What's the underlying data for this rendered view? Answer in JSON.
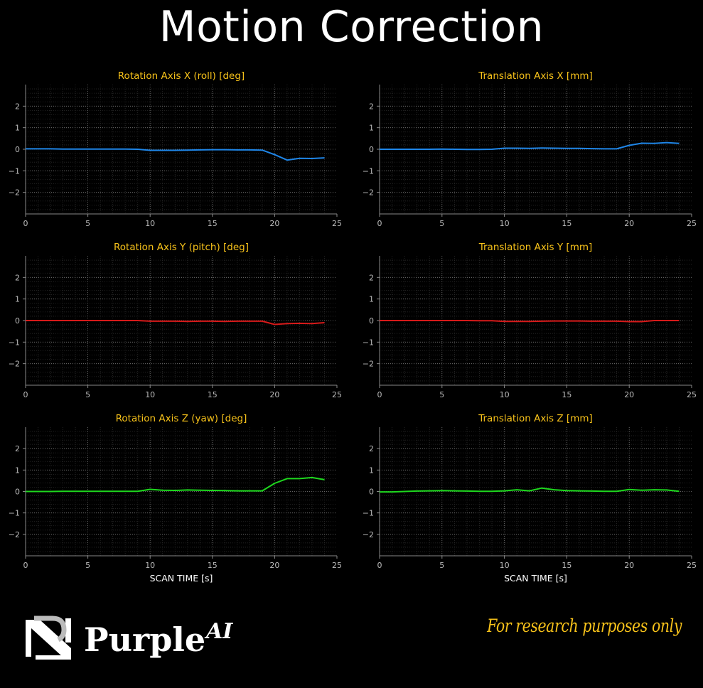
{
  "page": {
    "title": "Motion Correction",
    "disclaimer": "For research purposes only"
  },
  "logo": {
    "brand": "Purple",
    "suffix": "AI"
  },
  "colors": {
    "title": "#f7c21a",
    "x_series": "#1f86e8",
    "y_series": "#d71a1a",
    "z_series": "#1ed81e",
    "disclaimer": "#f7c21a"
  },
  "chart_data": [
    {
      "type": "line",
      "title": "Rotation Axis X (roll) [deg]",
      "xlabel": "",
      "ylabel": "",
      "xlim": [
        0,
        25
      ],
      "ylim": [
        -3,
        3
      ],
      "xticks": [
        0,
        5,
        10,
        15,
        20,
        25
      ],
      "yticks": [
        -2,
        -1,
        0,
        1,
        2
      ],
      "grid": true,
      "color": "#1f86e8",
      "x": [
        0,
        1,
        2,
        3,
        4,
        5,
        6,
        7,
        8,
        9,
        10,
        11,
        12,
        13,
        14,
        15,
        16,
        17,
        18,
        19,
        20,
        21,
        22,
        23,
        24
      ],
      "y": [
        0.02,
        0.02,
        0.02,
        0.01,
        0.01,
        0.01,
        0.01,
        0.01,
        0.01,
        0.0,
        -0.05,
        -0.05,
        -0.05,
        -0.04,
        -0.03,
        -0.02,
        -0.02,
        -0.03,
        -0.03,
        -0.04,
        -0.25,
        -0.5,
        -0.42,
        -0.43,
        -0.4
      ]
    },
    {
      "type": "line",
      "title": "Translation Axis X [mm]",
      "xlabel": "",
      "ylabel": "",
      "xlim": [
        0,
        25
      ],
      "ylim": [
        -3,
        3
      ],
      "xticks": [
        0,
        5,
        10,
        15,
        20,
        25
      ],
      "yticks": [
        -2,
        -1,
        0,
        1,
        2
      ],
      "grid": true,
      "color": "#1f86e8",
      "x": [
        0,
        1,
        2,
        3,
        4,
        5,
        6,
        7,
        8,
        9,
        10,
        11,
        12,
        13,
        14,
        15,
        16,
        17,
        18,
        19,
        20,
        21,
        22,
        23,
        24
      ],
      "y": [
        0.0,
        0.0,
        0.0,
        0.0,
        0.0,
        0.01,
        0.0,
        -0.01,
        -0.01,
        0.0,
        0.05,
        0.05,
        0.04,
        0.06,
        0.05,
        0.04,
        0.04,
        0.03,
        0.02,
        0.02,
        0.18,
        0.28,
        0.27,
        0.31,
        0.27
      ]
    },
    {
      "type": "line",
      "title": "Rotation Axis Y (pitch) [deg]",
      "xlabel": "",
      "ylabel": "",
      "xlim": [
        0,
        25
      ],
      "ylim": [
        -3,
        3
      ],
      "xticks": [
        0,
        5,
        10,
        15,
        20,
        25
      ],
      "yticks": [
        -2,
        -1,
        0,
        1,
        2
      ],
      "grid": true,
      "color": "#d71a1a",
      "x": [
        0,
        1,
        2,
        3,
        4,
        5,
        6,
        7,
        8,
        9,
        10,
        11,
        12,
        13,
        14,
        15,
        16,
        17,
        18,
        19,
        20,
        21,
        22,
        23,
        24
      ],
      "y": [
        0.0,
        0.0,
        0.0,
        0.0,
        0.0,
        0.0,
        0.0,
        0.0,
        0.0,
        0.0,
        -0.03,
        -0.03,
        -0.03,
        -0.04,
        -0.03,
        -0.03,
        -0.04,
        -0.03,
        -0.03,
        -0.03,
        -0.18,
        -0.14,
        -0.13,
        -0.14,
        -0.1
      ]
    },
    {
      "type": "line",
      "title": "Translation Axis Y [mm]",
      "xlabel": "",
      "ylabel": "",
      "xlim": [
        0,
        25
      ],
      "ylim": [
        -3,
        3
      ],
      "xticks": [
        0,
        5,
        10,
        15,
        20,
        25
      ],
      "yticks": [
        -2,
        -1,
        0,
        1,
        2
      ],
      "grid": true,
      "color": "#d71a1a",
      "x": [
        0,
        1,
        2,
        3,
        4,
        5,
        6,
        7,
        8,
        9,
        10,
        11,
        12,
        13,
        14,
        15,
        16,
        17,
        18,
        19,
        20,
        21,
        22,
        23,
        24
      ],
      "y": [
        0.0,
        0.0,
        0.0,
        0.0,
        0.0,
        0.0,
        0.0,
        0.0,
        -0.01,
        -0.01,
        -0.04,
        -0.04,
        -0.04,
        -0.03,
        -0.02,
        -0.02,
        -0.02,
        -0.03,
        -0.03,
        -0.03,
        -0.05,
        -0.05,
        0.0,
        0.0,
        0.0
      ]
    },
    {
      "type": "line",
      "title": "Rotation Axis Z (yaw) [deg]",
      "xlabel": "SCAN TIME [s]",
      "ylabel": "",
      "xlim": [
        0,
        25
      ],
      "ylim": [
        -3,
        3
      ],
      "xticks": [
        0,
        5,
        10,
        15,
        20,
        25
      ],
      "yticks": [
        -2,
        -1,
        0,
        1,
        2
      ],
      "grid": true,
      "color": "#1ed81e",
      "x": [
        0,
        1,
        2,
        3,
        4,
        5,
        6,
        7,
        8,
        9,
        10,
        11,
        12,
        13,
        14,
        15,
        16,
        17,
        18,
        19,
        20,
        21,
        22,
        23,
        24
      ],
      "y": [
        0.0,
        0.0,
        0.0,
        0.01,
        0.01,
        0.01,
        0.01,
        0.01,
        0.01,
        0.01,
        0.1,
        0.06,
        0.05,
        0.07,
        0.06,
        0.05,
        0.04,
        0.03,
        0.03,
        0.03,
        0.38,
        0.6,
        0.6,
        0.65,
        0.55
      ]
    },
    {
      "type": "line",
      "title": "Translation Axis Z [mm]",
      "xlabel": "SCAN TIME [s]",
      "ylabel": "",
      "xlim": [
        0,
        25
      ],
      "ylim": [
        -3,
        3
      ],
      "xticks": [
        0,
        5,
        10,
        15,
        20,
        25
      ],
      "yticks": [
        -2,
        -1,
        0,
        1,
        2
      ],
      "grid": true,
      "color": "#1ed81e",
      "x": [
        0,
        1,
        2,
        3,
        4,
        5,
        6,
        7,
        8,
        9,
        10,
        11,
        12,
        13,
        14,
        15,
        16,
        17,
        18,
        19,
        20,
        21,
        22,
        23,
        24
      ],
      "y": [
        -0.02,
        -0.02,
        0.0,
        0.02,
        0.03,
        0.04,
        0.03,
        0.02,
        0.01,
        0.01,
        0.03,
        0.08,
        0.03,
        0.16,
        0.08,
        0.04,
        0.03,
        0.02,
        0.01,
        0.01,
        0.09,
        0.06,
        0.08,
        0.07,
        0.01
      ]
    }
  ]
}
